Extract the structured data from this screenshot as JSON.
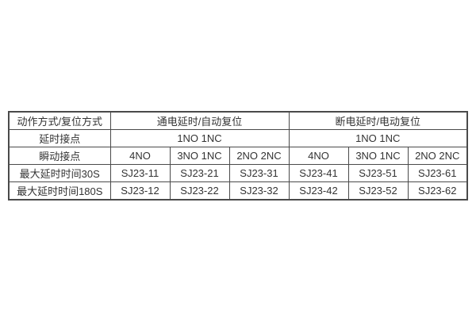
{
  "page": {
    "background": "#ffffff"
  },
  "table": {
    "border_color": "#4a4a4a",
    "text_color": "#333333",
    "header_row": {
      "action_reset_label": "动作方式/复位方式",
      "power_on_group_label": "通电延时/自动复位",
      "power_off_group_label": "断电延时/电动复位"
    },
    "delay_contact_row": {
      "label": "延时接点",
      "power_on_value": "1NO 1NC",
      "power_off_value": "1NO 1NC"
    },
    "instant_contact_row": {
      "label": "瞬动接点",
      "cells": [
        "4NO",
        "3NO 1NC",
        "2NO 2NC",
        "4NO",
        "3NO 1NC",
        "2NO 2NC"
      ]
    },
    "max_delay_30s_row": {
      "label": "最大延时时间30S",
      "cells": [
        "SJ23-11",
        "SJ23-21",
        "SJ23-31",
        "SJ23-41",
        "SJ23-51",
        "SJ23-61"
      ]
    },
    "max_delay_180s_row": {
      "label": "最大延时时间180S",
      "cells": [
        "SJ23-12",
        "SJ23-22",
        "SJ23-32",
        "SJ23-42",
        "SJ23-52",
        "SJ23-62"
      ]
    }
  }
}
